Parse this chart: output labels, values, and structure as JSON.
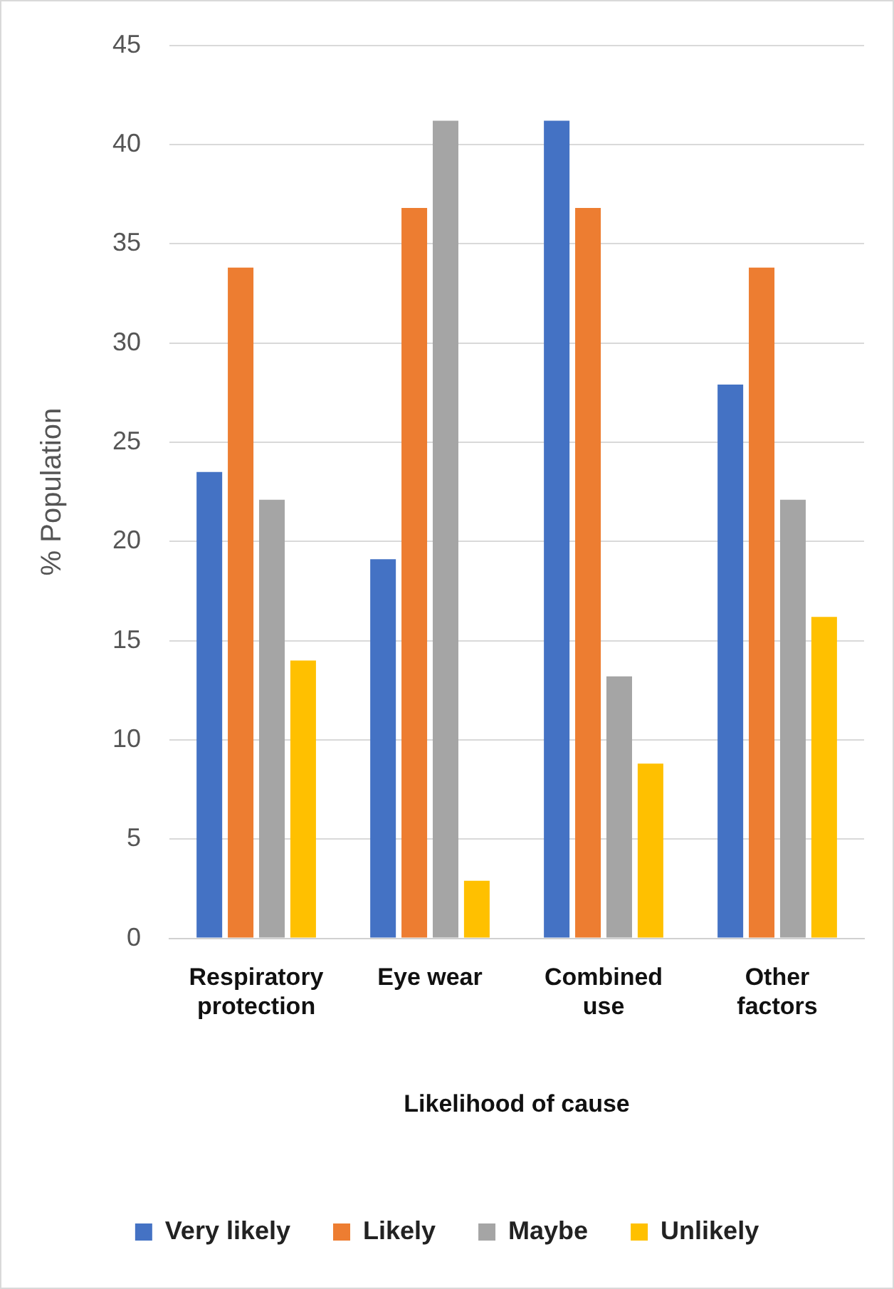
{
  "chart_data": {
    "type": "bar",
    "xlabel": "Likelihood of cause",
    "ylabel": "% Population",
    "categories": [
      "Respiratory protection",
      "Eye wear",
      "Combined use",
      "Other factors"
    ],
    "series": [
      {
        "name": "Very likely",
        "color": "#4472c4",
        "values": [
          23.5,
          19.1,
          41.2,
          27.9
        ]
      },
      {
        "name": "Likely",
        "color": "#ed7d31",
        "values": [
          33.8,
          36.8,
          36.8,
          33.8
        ]
      },
      {
        "name": "Maybe",
        "color": "#a5a5a5",
        "values": [
          22.1,
          41.2,
          13.2,
          22.1
        ]
      },
      {
        "name": "Unlikely",
        "color": "#ffc000",
        "values": [
          14.0,
          2.9,
          8.8,
          16.2
        ]
      }
    ],
    "ylim": [
      0,
      45
    ],
    "yticks": [
      0,
      5,
      10,
      15,
      20,
      25,
      30,
      35,
      40,
      45
    ],
    "grid": "y",
    "legend": "bottom"
  }
}
